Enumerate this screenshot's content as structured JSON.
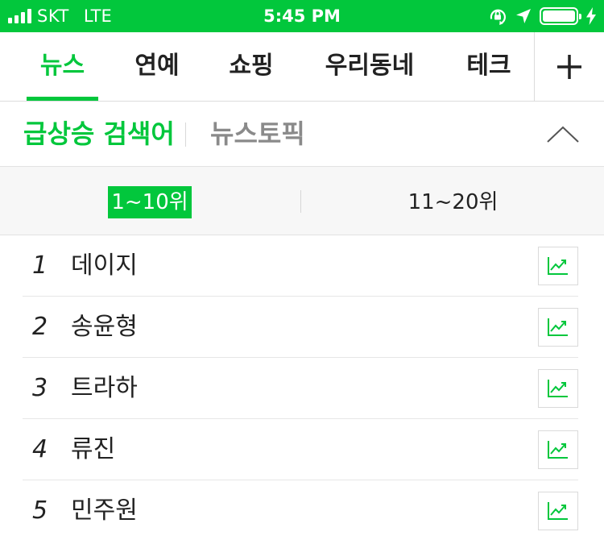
{
  "status_bar": {
    "carrier": "SKT",
    "network": "LTE",
    "time": "5:45 PM",
    "icons": [
      "signal-icon",
      "orientation-lock-icon",
      "location-arrow-icon",
      "battery-icon",
      "charging-bolt-icon"
    ]
  },
  "tabs": {
    "items": [
      {
        "label": "뉴스",
        "active": true
      },
      {
        "label": "연예",
        "active": false
      },
      {
        "label": "쇼핑",
        "active": false
      },
      {
        "label": "우리동네",
        "active": false
      },
      {
        "label": "테크",
        "active": false
      }
    ],
    "add_icon": "plus-icon"
  },
  "section": {
    "active_label": "급상승 검색어",
    "other_label": "뉴스토픽",
    "collapse_icon": "chevron-up-icon"
  },
  "range": {
    "active_label": "1~10위",
    "inactive_label": "11~20위"
  },
  "ranking": [
    {
      "rank": "1",
      "keyword": "데이지"
    },
    {
      "rank": "2",
      "keyword": "송윤형"
    },
    {
      "rank": "3",
      "keyword": "트라하"
    },
    {
      "rank": "4",
      "keyword": "류진"
    },
    {
      "rank": "5",
      "keyword": "민주원"
    }
  ],
  "colors": {
    "accent": "#02c73c",
    "inactive_text": "#8a8a8a",
    "range_background": "#f7f7f7"
  }
}
